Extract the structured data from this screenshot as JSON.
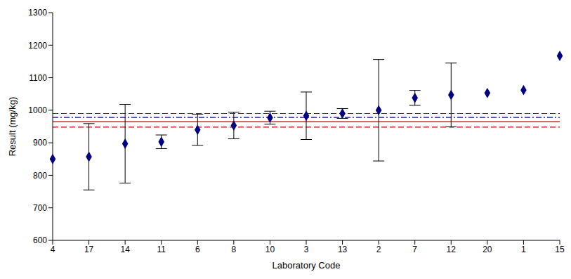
{
  "chart_data": {
    "type": "scatter",
    "x_label": "Laboratory Code",
    "y_label": "Result (mg/kg)",
    "categories": [
      "4",
      "17",
      "14",
      "11",
      "6",
      "8",
      "10",
      "3",
      "13",
      "2",
      "7",
      "12",
      "20",
      "1",
      "15"
    ],
    "values": [
      850,
      857,
      897,
      903,
      940,
      953,
      977,
      983,
      990,
      1000,
      1038,
      1047,
      1053,
      1062,
      1167
    ],
    "error": [
      null,
      102,
      121,
      21,
      48,
      41,
      20,
      73,
      15,
      156,
      23,
      98,
      null,
      null,
      null
    ],
    "color": "#000080",
    "marker": "diamond",
    "ylim": [
      600,
      1300
    ],
    "yticks": [
      600,
      700,
      800,
      900,
      1000,
      1100,
      1200,
      1300
    ],
    "grid": false,
    "reference_lines": [
      {
        "value": 965,
        "color": "#c00000",
        "line_style": "solid"
      },
      {
        "value": 990,
        "color": "#c00000",
        "line_style": "dashed"
      },
      {
        "value": 948,
        "color": "#c00000",
        "line_style": "dashed"
      },
      {
        "value": 978,
        "color": "#0000c0",
        "line_style": "dashdot"
      }
    ]
  }
}
